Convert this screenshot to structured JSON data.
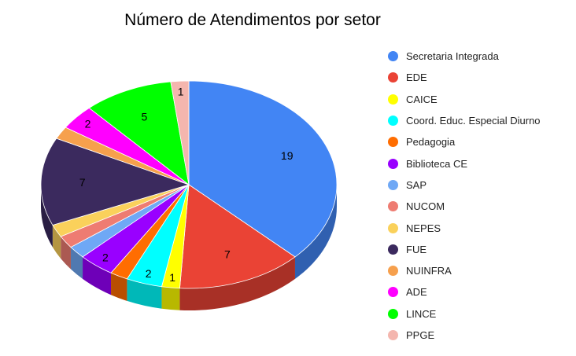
{
  "chart_data": {
    "type": "pie",
    "title": "Número de Atendimentos por setor",
    "legend_position": "right",
    "style": "3d",
    "slices": [
      {
        "label": "Secretaria Integrada",
        "value": 19,
        "color": "#4285f4",
        "show_label": true
      },
      {
        "label": "EDE",
        "value": 7,
        "color": "#ea4335",
        "show_label": true
      },
      {
        "label": "CAICE",
        "value": 1,
        "color": "#ffff00",
        "show_label": true
      },
      {
        "label": "Coord. Educ. Especial Diurno",
        "value": 2,
        "color": "#00ffff",
        "show_label": true
      },
      {
        "label": "Pedagogia",
        "value": 1,
        "color": "#ff6d01",
        "show_label": false
      },
      {
        "label": "Biblioteca CE",
        "value": 2,
        "color": "#9900ff",
        "show_label": true
      },
      {
        "label": "SAP",
        "value": 1,
        "color": "#6fa8f5",
        "show_label": false
      },
      {
        "label": "NUCOM",
        "value": 1,
        "color": "#ee7c72",
        "show_label": false
      },
      {
        "label": "NEPES",
        "value": 1,
        "color": "#fad15b",
        "show_label": false
      },
      {
        "label": "FUE",
        "value": 7,
        "color": "#3b2a5e",
        "show_label": true
      },
      {
        "label": "NUINFRA",
        "value": 1,
        "color": "#f6a04d",
        "show_label": false
      },
      {
        "label": "ADE",
        "value": 2,
        "color": "#ff00ff",
        "show_label": true
      },
      {
        "label": "LINCE",
        "value": 5,
        "color": "#00ff00",
        "show_label": true
      },
      {
        "label": "PPGE",
        "value": 1,
        "color": "#f4b6ae",
        "show_label": true
      }
    ]
  }
}
